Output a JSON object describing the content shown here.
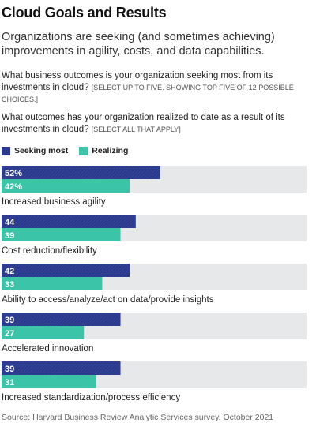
{
  "header": {
    "title": "Cloud Goals and Results",
    "subtitle": "Organizations are seeking (and sometimes achieving) improvements in agility, costs, and data capabilities."
  },
  "questions": {
    "q1_text": "What business outcomes is your organization seeking most from its investments in cloud?",
    "q1_note": "[SELECT UP TO FIVE. SHOWING TOP FIVE OF 12 POSSIBLE CHOICES.]",
    "q2_text": "What outcomes has your organization realized to date as a result of its investments in cloud?",
    "q2_note": "[SELECT ALL THAT APPLY]"
  },
  "footer": {
    "source": "Source: Harvard Business Review Analytic Services survey, October 2021"
  },
  "colors": {
    "seeking": "#2b3a8c",
    "realizing": "#3cc4a8",
    "track": "#e6e8ea"
  },
  "chart_data": {
    "type": "bar",
    "orientation": "horizontal",
    "title": "Cloud Goals and Results",
    "xlim": [
      0,
      100
    ],
    "grid": false,
    "legend": "top-left",
    "categories": [
      "Increased business agility",
      "Cost reduction/flexibility",
      "Ability to access/analyze/act on data/provide insights",
      "Accelerated innovation",
      "Increased standardization/process efficiency"
    ],
    "series": [
      {
        "name": "Seeking most",
        "values": [
          52,
          44,
          42,
          39,
          39
        ],
        "labels": [
          "52%",
          "44",
          "42",
          "39",
          "39"
        ]
      },
      {
        "name": "Realizing",
        "values": [
          42,
          39,
          33,
          27,
          31
        ],
        "labels": [
          "42%",
          "39",
          "33",
          "27",
          "31"
        ]
      }
    ]
  }
}
